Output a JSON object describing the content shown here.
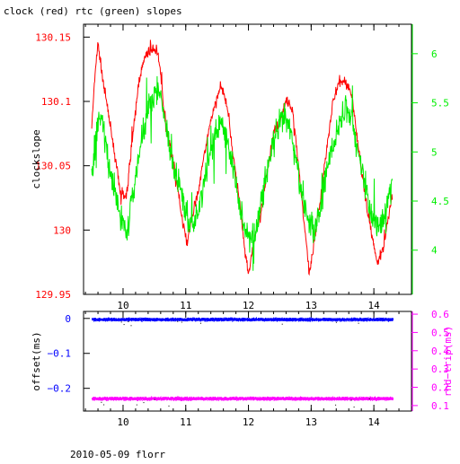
{
  "title": "clock (red) rtc (green) slopes",
  "footer": "2010-05-09 florr",
  "colors": {
    "red": "#ff0000",
    "green": "#00ee00",
    "blue": "#0000ff",
    "magenta": "#ff00ff",
    "axis": "#000000"
  },
  "chart_data": [
    {
      "type": "line",
      "panel": "top",
      "xlim": [
        9.37,
        14.6
      ],
      "x_ticks": [
        10,
        11,
        12,
        13,
        14
      ],
      "x_tick_labels": [
        "10",
        "11",
        "12",
        "13",
        "14"
      ],
      "ylabel_left": "clockslope",
      "ylim_left": [
        129.95,
        130.16
      ],
      "yticks_left": [
        129.95,
        130,
        130.05,
        130.1,
        130.15
      ],
      "ytick_labels_left": [
        "129.95",
        "130",
        "130.05",
        "130.1",
        "130.15"
      ],
      "ylabel_right": "",
      "ylim_right": [
        3.55,
        6.3
      ],
      "yticks_right": [
        4,
        4.5,
        5,
        5.5,
        6
      ],
      "ytick_labels_right": [
        "4",
        "4.5",
        "5",
        "5.5",
        "6"
      ],
      "series": [
        {
          "axis": "left",
          "color": "#ff0000",
          "x": [
            9.5,
            9.56,
            9.6,
            9.67,
            9.75,
            9.85,
            9.95,
            10.05,
            10.15,
            10.25,
            10.35,
            10.45,
            10.55,
            10.6,
            10.65,
            10.75,
            10.85,
            10.95,
            11.02,
            11.1,
            11.2,
            11.3,
            11.4,
            11.5,
            11.6,
            11.68,
            11.75,
            11.85,
            11.95,
            12.0,
            12.1,
            12.2,
            12.3,
            12.4,
            12.5,
            12.6,
            12.7,
            12.8,
            12.9,
            12.97,
            13.05,
            13.15,
            13.25,
            13.35,
            13.45,
            13.55,
            13.65,
            13.75,
            13.85,
            13.95,
            14.05,
            14.15,
            14.25,
            14.3
          ],
          "y": [
            130.08,
            130.125,
            130.145,
            130.12,
            130.095,
            130.065,
            130.03,
            130.025,
            130.07,
            130.115,
            130.135,
            130.14,
            130.14,
            130.12,
            130.095,
            130.065,
            130.04,
            130.005,
            129.99,
            130.01,
            130.03,
            130.06,
            130.085,
            130.105,
            130.11,
            130.09,
            130.06,
            130.025,
            129.98,
            129.965,
            129.995,
            130.015,
            130.045,
            130.075,
            130.085,
            130.1,
            130.095,
            130.05,
            130.0,
            129.965,
            129.99,
            130.025,
            130.065,
            130.1,
            130.115,
            130.115,
            130.105,
            130.065,
            130.03,
            130.0,
            129.975,
            129.985,
            130.015,
            130.03
          ]
        },
        {
          "axis": "right",
          "color": "#00ee00",
          "x": [
            9.5,
            9.58,
            9.65,
            9.72,
            9.8,
            9.9,
            9.98,
            10.05,
            10.15,
            10.25,
            10.35,
            10.45,
            10.55,
            10.65,
            10.75,
            10.85,
            10.95,
            11.05,
            11.15,
            11.25,
            11.35,
            11.45,
            11.55,
            11.65,
            11.75,
            11.85,
            11.95,
            12.05,
            12.15,
            12.25,
            12.35,
            12.45,
            12.55,
            12.65,
            12.75,
            12.85,
            12.95,
            13.05,
            13.15,
            13.25,
            13.35,
            13.45,
            13.55,
            13.65,
            13.75,
            13.85,
            13.95,
            14.05,
            14.15,
            14.25,
            14.3
          ],
          "y": [
            4.8,
            5.2,
            5.4,
            5.1,
            4.75,
            4.5,
            4.3,
            4.15,
            4.55,
            4.95,
            5.3,
            5.55,
            5.65,
            5.4,
            5.05,
            4.75,
            4.5,
            4.25,
            4.3,
            4.55,
            4.85,
            5.15,
            5.3,
            5.15,
            4.85,
            4.5,
            4.2,
            4.1,
            4.3,
            4.65,
            4.95,
            5.2,
            5.35,
            5.25,
            4.95,
            4.6,
            4.35,
            4.2,
            4.45,
            4.8,
            5.05,
            5.3,
            5.4,
            5.35,
            5.0,
            4.7,
            4.4,
            4.25,
            4.35,
            4.55,
            4.75
          ]
        }
      ]
    },
    {
      "type": "scatter",
      "panel": "bottom",
      "xlim": [
        9.37,
        14.6
      ],
      "x_ticks": [
        10,
        11,
        12,
        13,
        14
      ],
      "x_tick_labels": [
        "10",
        "11",
        "12",
        "13",
        "14"
      ],
      "ylabel_left": "offset(ms)",
      "ylim_left": [
        -0.265,
        0.02
      ],
      "yticks_left": [
        0,
        -0.1,
        -0.2
      ],
      "ytick_labels_left": [
        "0",
        "−0.1",
        "−0.2"
      ],
      "ylabel_right": "rnd−trip(ms)",
      "ylim_right": [
        0.07,
        0.615
      ],
      "yticks_right": [
        0.1,
        0.2,
        0.3,
        0.4,
        0.5,
        0.6
      ],
      "ytick_labels_right": [
        "0.1",
        "0.2",
        "0.3",
        "0.4",
        "0.5",
        "0.6"
      ],
      "series": [
        {
          "axis": "left",
          "color": "#0000ff",
          "x_range": [
            9.5,
            14.3
          ],
          "center": -0.002,
          "spread": 0.006
        },
        {
          "axis": "right",
          "color": "#ff00ff",
          "x_range": [
            9.5,
            14.3
          ],
          "center": 0.14,
          "spread": 0.012
        }
      ]
    }
  ]
}
